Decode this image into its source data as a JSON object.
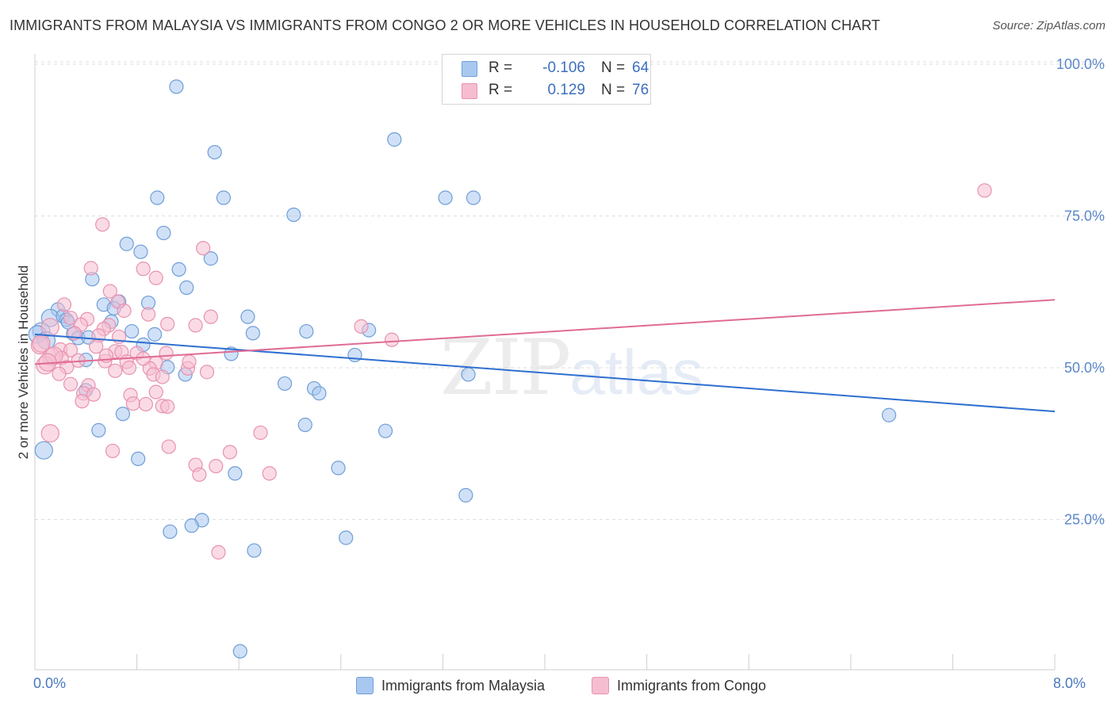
{
  "title": "IMMIGRANTS FROM MALAYSIA VS IMMIGRANTS FROM CONGO 2 OR MORE VEHICLES IN HOUSEHOLD CORRELATION CHART",
  "source": "Source: ZipAtlas.com",
  "watermark": {
    "part1": "ZIP",
    "part2": "atlas"
  },
  "colors": {
    "malaysia_fill": "#a9c8f0",
    "malaysia_stroke": "#6f9ed8",
    "malaysia_line": "#2f6fd0",
    "congo_fill": "#f6bdd0",
    "congo_stroke": "#e892b0",
    "congo_line": "#e06b94",
    "tick_blue": "#5b87c9",
    "grid": "#dedede"
  },
  "stats": [
    {
      "label": "R =",
      "r": "-0.106",
      "n_label": "N =",
      "n": "64"
    },
    {
      "label": "R =",
      "r": "0.129",
      "n_label": "N =",
      "n": "76"
    }
  ],
  "legend": [
    "Immigrants from Malaysia",
    "Immigrants from Congo"
  ],
  "chart_data": {
    "type": "scatter",
    "title": "IMMIGRANTS FROM MALAYSIA VS IMMIGRANTS FROM CONGO 2 OR MORE VEHICLES IN HOUSEHOLD CORRELATION CHART",
    "xlabel": "",
    "ylabel": "2 or more Vehicles in Household",
    "xlim": [
      0,
      8
    ],
    "ylim": [
      0,
      105
    ],
    "x_tick_labels": [
      "0.0%",
      "8.0%"
    ],
    "y_ticks": [
      25,
      50,
      75,
      100
    ],
    "y_tick_labels": [
      "25.0%",
      "50.0%",
      "75.0%",
      "100.0%"
    ],
    "grid": true,
    "series": [
      {
        "name": "Immigrants from Malaysia",
        "trend": {
          "x": [
            0,
            8
          ],
          "y": [
            55.5,
            42.8
          ]
        },
        "points": [
          [
            1.11,
            96.3
          ],
          [
            2.82,
            87.6
          ],
          [
            1.41,
            85.5
          ],
          [
            0.96,
            78.0
          ],
          [
            1.48,
            78.0
          ],
          [
            3.22,
            78.0
          ],
          [
            3.44,
            78.0
          ],
          [
            2.03,
            75.2
          ],
          [
            1.01,
            72.2
          ],
          [
            0.72,
            70.4
          ],
          [
            0.83,
            69.1
          ],
          [
            1.38,
            68.0
          ],
          [
            1.13,
            66.2
          ],
          [
            0.45,
            64.6
          ],
          [
            1.19,
            63.2
          ],
          [
            0.54,
            60.4
          ],
          [
            0.89,
            60.7
          ],
          [
            0.66,
            60.9
          ],
          [
            0.18,
            59.6
          ],
          [
            0.62,
            59.8
          ],
          [
            0.12,
            58.2
          ],
          [
            0.22,
            58.5
          ],
          [
            0.25,
            57.9
          ],
          [
            0.6,
            57.6
          ],
          [
            0.3,
            55.6
          ],
          [
            0.76,
            56.0
          ],
          [
            0.94,
            55.5
          ],
          [
            1.67,
            58.4
          ],
          [
            1.71,
            55.7
          ],
          [
            2.13,
            56.0
          ],
          [
            2.62,
            56.2
          ],
          [
            0.34,
            54.9
          ],
          [
            0.42,
            55.0
          ],
          [
            0.26,
            57.5
          ],
          [
            0.85,
            53.8
          ],
          [
            1.54,
            52.3
          ],
          [
            2.51,
            52.1
          ],
          [
            0.4,
            51.3
          ],
          [
            1.04,
            50.1
          ],
          [
            1.18,
            48.9
          ],
          [
            3.4,
            48.9
          ],
          [
            1.96,
            47.4
          ],
          [
            2.19,
            46.6
          ],
          [
            2.23,
            45.8
          ],
          [
            0.4,
            46.3
          ],
          [
            0.69,
            42.4
          ],
          [
            2.12,
            40.6
          ],
          [
            0.5,
            39.7
          ],
          [
            2.75,
            39.6
          ],
          [
            6.7,
            42.2
          ],
          [
            0.07,
            36.4
          ],
          [
            0.81,
            35.0
          ],
          [
            2.38,
            33.5
          ],
          [
            1.57,
            32.6
          ],
          [
            3.38,
            29.0
          ],
          [
            1.31,
            24.9
          ],
          [
            1.23,
            24.0
          ],
          [
            1.06,
            23.0
          ],
          [
            2.44,
            22.0
          ],
          [
            1.72,
            19.9
          ],
          [
            1.61,
            3.3
          ],
          [
            0.05,
            56.0
          ],
          [
            0.02,
            55.5
          ],
          [
            0.09,
            54.5
          ]
        ]
      },
      {
        "name": "Immigrants from Congo",
        "trend": {
          "x": [
            0,
            8
          ],
          "y": [
            50.6,
            61.2
          ]
        },
        "points": [
          [
            7.45,
            79.2
          ],
          [
            0.53,
            73.6
          ],
          [
            1.32,
            69.7
          ],
          [
            0.44,
            66.4
          ],
          [
            0.85,
            66.3
          ],
          [
            0.95,
            64.8
          ],
          [
            0.59,
            62.6
          ],
          [
            0.23,
            60.4
          ],
          [
            0.65,
            60.9
          ],
          [
            0.7,
            59.4
          ],
          [
            0.89,
            58.8
          ],
          [
            0.28,
            58.2
          ],
          [
            0.41,
            58.0
          ],
          [
            1.38,
            58.4
          ],
          [
            0.36,
            57.1
          ],
          [
            0.58,
            57.0
          ],
          [
            1.04,
            57.2
          ],
          [
            1.26,
            57.0
          ],
          [
            2.56,
            56.8
          ],
          [
            0.12,
            56.7
          ],
          [
            0.54,
            56.4
          ],
          [
            0.31,
            55.7
          ],
          [
            0.5,
            55.3
          ],
          [
            0.66,
            55.1
          ],
          [
            2.8,
            54.6
          ],
          [
            0.04,
            53.7
          ],
          [
            0.2,
            53.0
          ],
          [
            0.28,
            52.9
          ],
          [
            0.63,
            52.7
          ],
          [
            0.68,
            52.6
          ],
          [
            0.8,
            52.4
          ],
          [
            1.03,
            52.4
          ],
          [
            0.13,
            51.8
          ],
          [
            0.21,
            51.6
          ],
          [
            0.34,
            51.2
          ],
          [
            0.55,
            51.1
          ],
          [
            0.72,
            51.0
          ],
          [
            0.95,
            50.8
          ],
          [
            0.08,
            50.4
          ],
          [
            0.25,
            50.1
          ],
          [
            0.9,
            49.9
          ],
          [
            1.2,
            49.9
          ],
          [
            0.63,
            49.5
          ],
          [
            1.35,
            49.3
          ],
          [
            0.19,
            49.0
          ],
          [
            0.93,
            48.9
          ],
          [
            1.0,
            48.5
          ],
          [
            0.28,
            47.3
          ],
          [
            0.42,
            47.1
          ],
          [
            0.38,
            45.8
          ],
          [
            0.46,
            45.6
          ],
          [
            0.75,
            45.5
          ],
          [
            0.37,
            44.5
          ],
          [
            0.77,
            44.1
          ],
          [
            0.87,
            44.0
          ],
          [
            1.0,
            43.7
          ],
          [
            1.04,
            43.6
          ],
          [
            0.12,
            39.2
          ],
          [
            1.77,
            39.3
          ],
          [
            1.05,
            37.0
          ],
          [
            0.61,
            36.3
          ],
          [
            1.53,
            36.1
          ],
          [
            1.26,
            34.0
          ],
          [
            1.42,
            33.8
          ],
          [
            1.29,
            32.4
          ],
          [
            1.84,
            32.6
          ],
          [
            1.44,
            19.6
          ],
          [
            0.05,
            54.0
          ],
          [
            0.15,
            52.0
          ],
          [
            0.48,
            53.5
          ],
          [
            0.1,
            50.9
          ],
          [
            0.74,
            50.0
          ],
          [
            0.95,
            46.0
          ],
          [
            1.21,
            51.0
          ],
          [
            0.85,
            51.5
          ],
          [
            0.56,
            52.0
          ]
        ]
      }
    ]
  }
}
